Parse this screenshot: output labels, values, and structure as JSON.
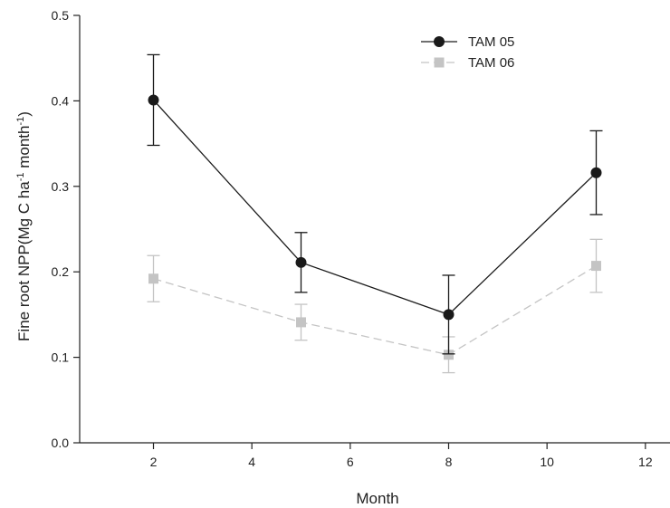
{
  "chart_data": {
    "type": "line",
    "xlabel": "Month",
    "ylabel": {
      "prefix": "Fine root NPP(Mg C ha",
      "sup1": "-1",
      "mid": " month",
      "sup2": "-1",
      "suffix": ")"
    },
    "xlim": [
      0.5,
      12.5
    ],
    "ylim": [
      0.0,
      0.5
    ],
    "x_ticks": [
      2,
      4,
      6,
      8,
      10,
      12
    ],
    "y_ticks": [
      0.0,
      0.1,
      0.2,
      0.3,
      0.4,
      0.5
    ],
    "x_tick_labels": [
      "2",
      "4",
      "6",
      "8",
      "10",
      "12"
    ],
    "y_tick_labels": [
      "0.0",
      "0.1",
      "0.2",
      "0.3",
      "0.4",
      "0.5"
    ],
    "legend_position": "top-right",
    "grid": false,
    "series": [
      {
        "name": "TAM 05",
        "color": "#1a1a1a",
        "marker": "circle",
        "line_style": "solid",
        "x": [
          2,
          5,
          8,
          11
        ],
        "y": [
          0.401,
          0.211,
          0.15,
          0.316
        ],
        "error": [
          0.053,
          0.035,
          0.046,
          0.049
        ]
      },
      {
        "name": "TAM 06",
        "color": "#c4c4c4",
        "marker": "square",
        "line_style": "dashed",
        "x": [
          2,
          5,
          8,
          11
        ],
        "y": [
          0.192,
          0.141,
          0.103,
          0.207
        ],
        "error": [
          0.027,
          0.021,
          0.021,
          0.031
        ]
      }
    ]
  }
}
